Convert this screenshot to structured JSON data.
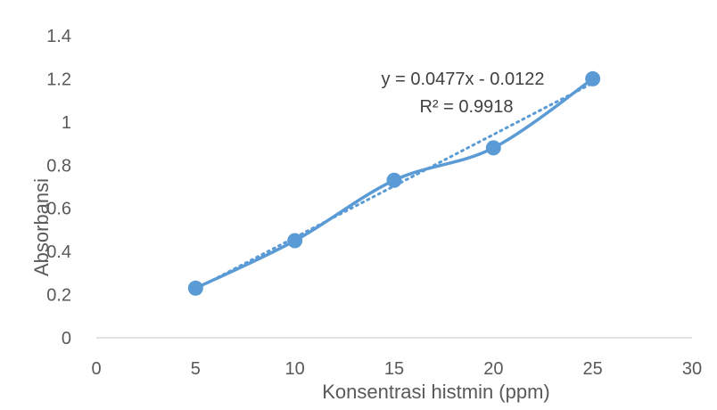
{
  "chart_data": {
    "type": "scatter",
    "title": "",
    "xlabel": "Konsentrasi histmin (ppm)",
    "ylabel": "Absorbansi",
    "xlim": [
      0,
      30
    ],
    "ylim": [
      0,
      1.4
    ],
    "x_ticks": [
      "0",
      "5",
      "10",
      "15",
      "20",
      "25",
      "30"
    ],
    "y_ticks": [
      "0",
      "0.2",
      "0.4",
      "0.6",
      "0.8",
      "1",
      "1.2",
      "1.4"
    ],
    "grid": false,
    "legend": "none",
    "series": [
      {
        "style": "smooth-line-markers",
        "color": "#5b9bd5",
        "x": [
          5,
          10,
          15,
          20,
          25
        ],
        "y": [
          0.23,
          0.45,
          0.73,
          0.88,
          1.2
        ]
      }
    ],
    "trendline": {
      "type": "linear",
      "slope": 0.0477,
      "intercept": -0.0122,
      "style": "dotted",
      "color": "#5b9bd5",
      "equation": "y = 0.0477x - 0.0122",
      "r_squared": "R² = 0.9918"
    },
    "colors": {
      "axis": "#d9d9d9",
      "text": "#595959",
      "annotation": "#404040"
    }
  }
}
